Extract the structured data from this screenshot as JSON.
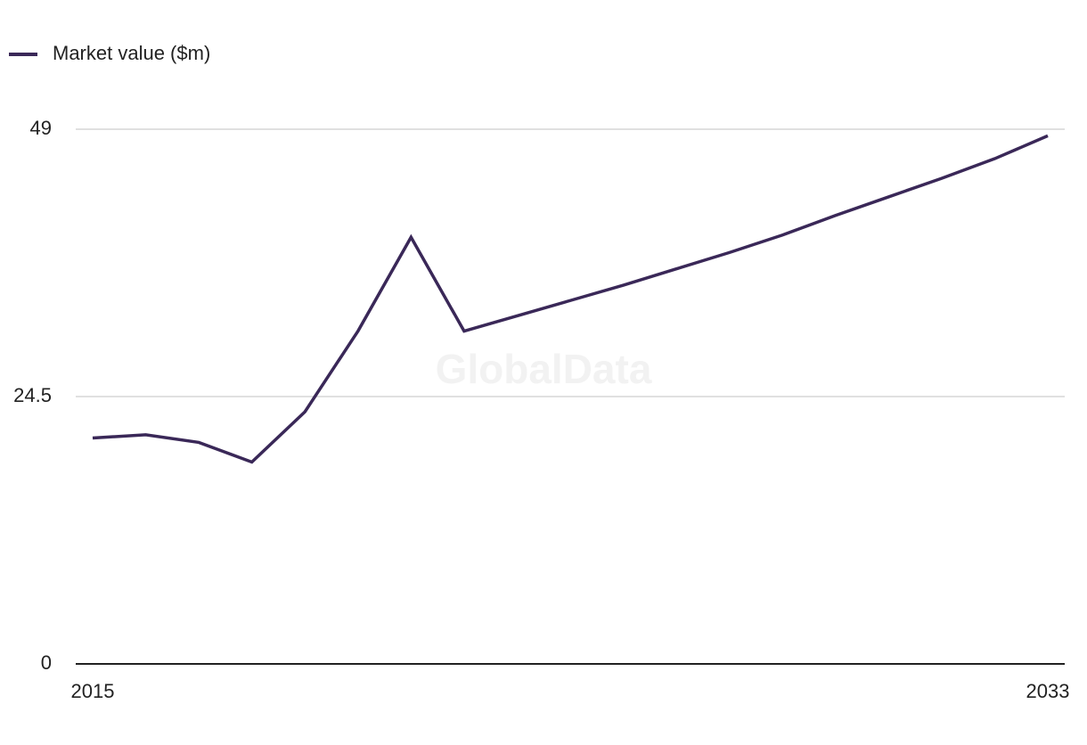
{
  "chart_data": {
    "type": "line",
    "watermark": "GlobalData",
    "x": [
      2015,
      2016,
      2017,
      2018,
      2019,
      2020,
      2021,
      2022,
      2023,
      2024,
      2025,
      2026,
      2027,
      2028,
      2029,
      2030,
      2031,
      2032,
      2033
    ],
    "series": [
      {
        "name": "Market value ($m)",
        "color": "#3a2858",
        "values": [
          20.7,
          21.0,
          20.3,
          18.5,
          23.1,
          30.5,
          39.1,
          30.5,
          31.9,
          33.3,
          34.7,
          36.2,
          37.7,
          39.3,
          41.1,
          42.8,
          44.5,
          46.3,
          48.4
        ]
      }
    ],
    "xlim": [
      2015,
      2033
    ],
    "xticks": [
      2015,
      2033
    ],
    "ylim": [
      0,
      49
    ],
    "yticks": [
      0,
      24.5,
      49
    ],
    "grid": true,
    "legend": "top-left"
  }
}
